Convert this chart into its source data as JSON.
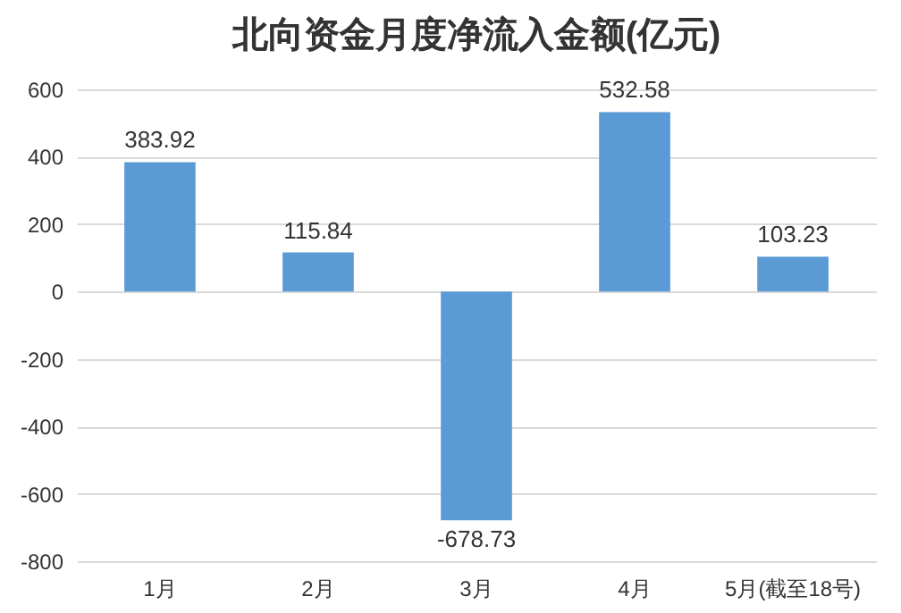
{
  "chart_data": {
    "type": "bar",
    "title": "北向资金月度净流入金额(亿元)",
    "categories": [
      "1月",
      "2月",
      "3月",
      "4月",
      "5月(截至18号)"
    ],
    "values": [
      383.92,
      115.84,
      -678.73,
      532.58,
      103.23
    ],
    "color": "#5b9bd5",
    "ylim": [
      -800,
      600
    ],
    "yticks": [
      -800,
      -600,
      -400,
      -200,
      0,
      200,
      400,
      600
    ],
    "grid": "y",
    "data_labels": true
  }
}
